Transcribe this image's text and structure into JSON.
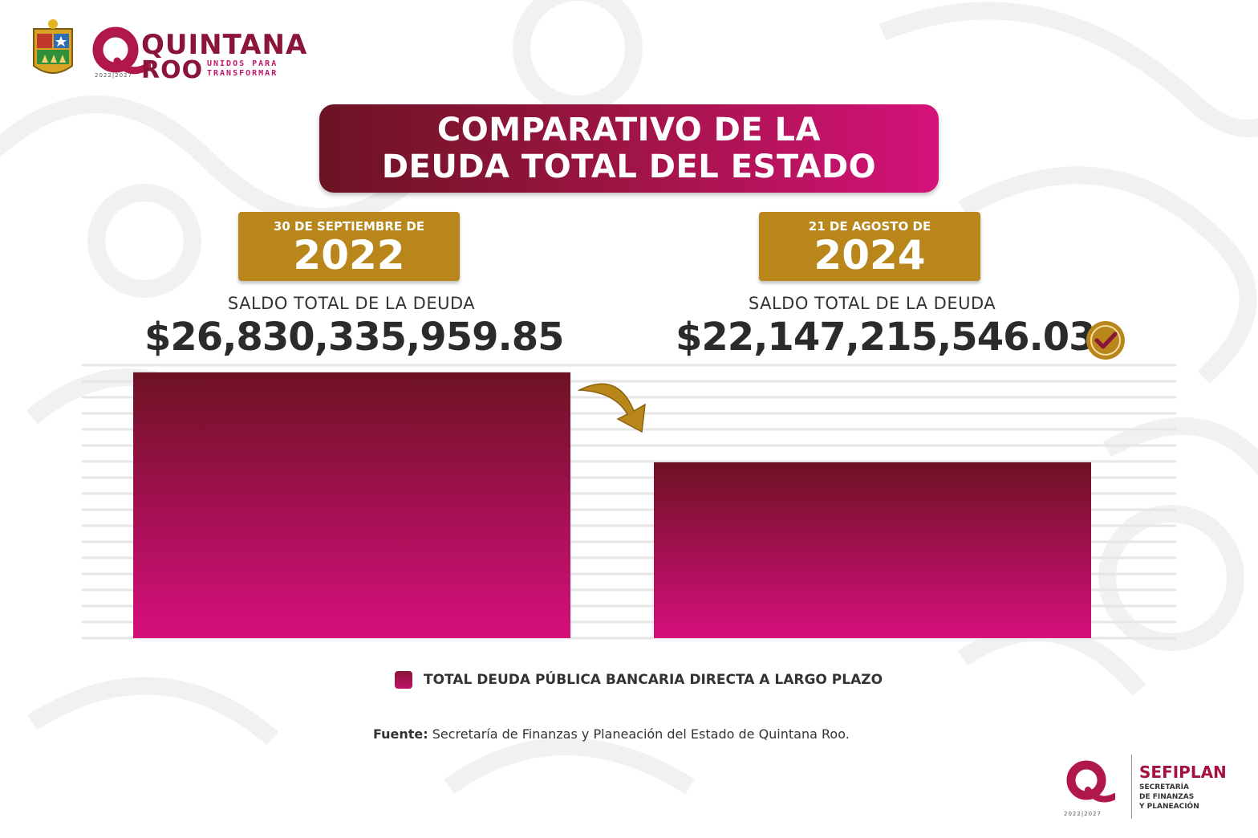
{
  "header": {
    "logo_name_line1": "QUINTANA",
    "logo_name_line2": "ROO",
    "logo_tagline1": "UNIDOS PARA",
    "logo_tagline2": "TRANSFORMAR",
    "logo_years": "2022|2027"
  },
  "title": {
    "line1": "COMPARATIVO DE LA",
    "line2": "DEUDA TOTAL DEL ESTADO"
  },
  "panels": {
    "left": {
      "date_label": "30 DE SEPTIEMBRE DE",
      "year": "2022",
      "saldo_label": "SALDO TOTAL DE LA DEUDA",
      "saldo_value": "$26,830,335,959.85"
    },
    "right": {
      "date_label": "21 DE AGOSTO DE",
      "year": "2024",
      "saldo_label": "SALDO TOTAL DE LA DEUDA",
      "saldo_value": "$22,147,215,546.03"
    }
  },
  "chart_data": {
    "type": "bar",
    "categories": [
      "30 de septiembre de 2022",
      "21 de agosto de 2024"
    ],
    "values": [
      26830335959.85,
      22147215546.03
    ],
    "series": [
      {
        "name": "TOTAL DEUDA PÚBLICA BANCARIA DIRECTA A LARGO PLAZO",
        "values": [
          26830335959.85,
          22147215546.03
        ]
      }
    ],
    "title": "COMPARATIVO DE LA DEUDA TOTAL DEL ESTADO",
    "xlabel": "",
    "ylabel": "",
    "ylim": [
      13000000000,
      27200000000
    ],
    "grid": true,
    "legend_position": "bottom"
  },
  "legend": {
    "label": "TOTAL DEUDA PÚBLICA BANCARIA DIRECTA A LARGO PLAZO"
  },
  "source": {
    "prefix": "Fuente:",
    "text": " Secretaría de Finanzas y Planeación del Estado de Quintana Roo."
  },
  "footer": {
    "org_name": "SEFIPLAN",
    "org_sub1": "SECRETARÍA",
    "org_sub2": "DE FINANZAS",
    "org_sub3": "Y PLANEACIÓN",
    "years": "2022|2027"
  },
  "colors": {
    "bar_top": "#6e1223",
    "bar_bottom": "#d60f7d",
    "gold": "#b8861a",
    "grid": "#e6e6e6"
  }
}
